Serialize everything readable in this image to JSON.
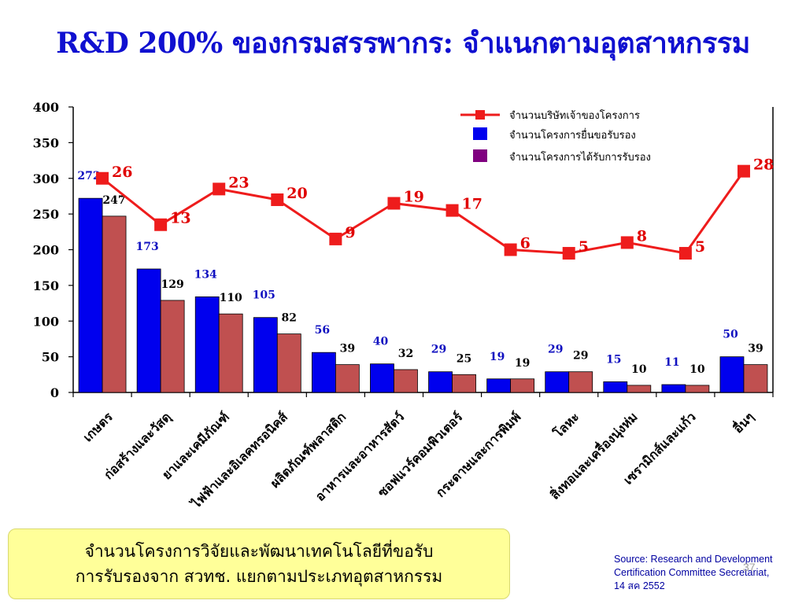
{
  "slide": {
    "title": "R&D 200% ของกรมสรรพากร: จำแนกตามอุตสาหกรรม",
    "note_line1": "จำนวนโครงการวิจัยและพัฒนาเทคโนโลยีที่ขอรับ",
    "note_line2": "การรับรองจาก สวทช. แยกตามประเภทอุตสาหกรรม",
    "source_line1": "Source: Research and Development",
    "source_line2": "Certification Committee Secretariat,",
    "source_line3": "14 สค 2552",
    "page_number": "37"
  },
  "colors": {
    "title": "#1010d0",
    "bar_requested": "#0000ee",
    "bar_certified": "#c05050",
    "legend_certified": "#800080",
    "line": "#ee1c1c",
    "line_label": "#e00000",
    "requested_label": "#1010c0",
    "certified_label": "#000000"
  },
  "chart_data": {
    "type": "bar",
    "categories": [
      "เกษตร",
      "ก่อสร้างและวัสดุ",
      "ยาและเคมีภัณฑ์",
      "ไฟฟ้าและอิเลคทรอนิคส์",
      "ผลิตภัณฑ์พลาสติก",
      "อาหารและอาหารสัตว์",
      "ซอฟแวร์คอมพิวเตอร์",
      "กระดาษและการพิมพ์",
      "โลหะ",
      "สิ่งทอและเครื่องนุ่งห่ม",
      "เซรามิกส์และแก้ว",
      "อื่นๆ"
    ],
    "series": [
      {
        "name": "จำนวนโครงการยื่นขอรับรอง",
        "values": [
          272,
          173,
          134,
          105,
          56,
          40,
          29,
          19,
          29,
          15,
          11,
          50
        ]
      },
      {
        "name": "จำนวนโครงการได้รับการรับรอง",
        "values": [
          247,
          129,
          110,
          82,
          39,
          32,
          25,
          19,
          29,
          10,
          10,
          39
        ]
      }
    ],
    "line_series": {
      "name": "จำนวนบริษัทเจ้าของโครงการ",
      "values": [
        26,
        13,
        23,
        20,
        9,
        19,
        17,
        6,
        5,
        8,
        5,
        28
      ]
    },
    "yticks": [
      0,
      50,
      100,
      150,
      200,
      250,
      300,
      350,
      400
    ],
    "ylim": [
      0,
      400
    ],
    "legend_position": "top-right",
    "grid": false
  }
}
